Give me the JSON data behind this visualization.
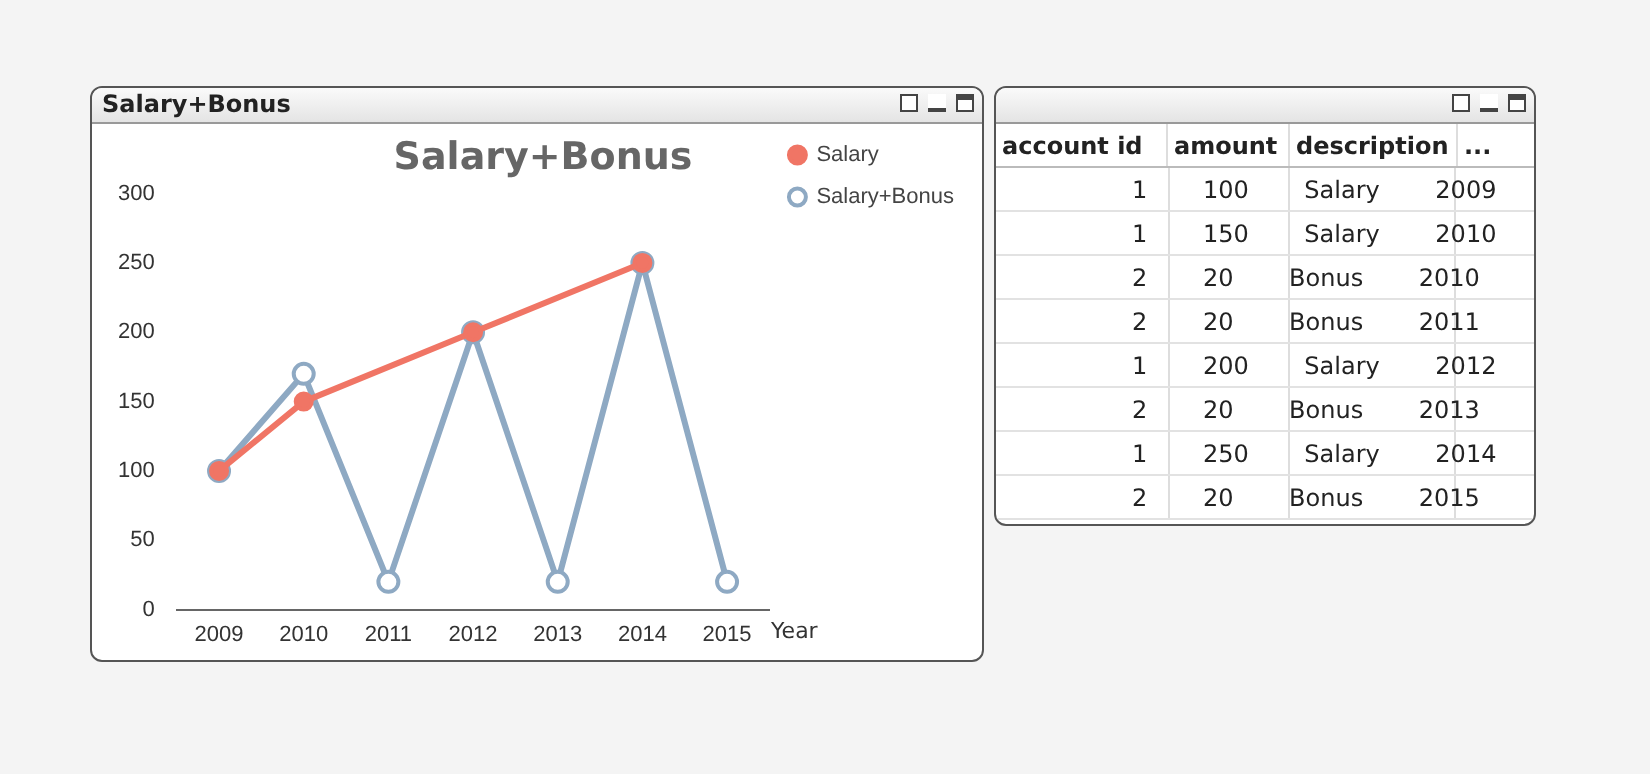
{
  "chart_data": [
    {
      "type": "line",
      "title": "Salary+Bonus",
      "xlabel": "Year",
      "categories": [
        "2009",
        "2010",
        "2011",
        "2012",
        "2013",
        "2014",
        "2015"
      ],
      "series": [
        {
          "name": "Salary+Bonus",
          "color": "#8ea9c3",
          "values": [
            100,
            170,
            20,
            200,
            20,
            250,
            20
          ]
        },
        {
          "name": "Salary",
          "color": "#f07565",
          "values": [
            100,
            150,
            null,
            200,
            null,
            250,
            null
          ]
        }
      ],
      "ylim": [
        0,
        300
      ],
      "yticks": [
        0,
        50,
        100,
        150,
        200,
        250,
        300
      ],
      "grid": false,
      "legend": "top right",
      "marker": "circle",
      "line_style": "solid",
      "annotations": [
        "Salary+Bonus"
      ]
    },
    {
      "type": "other",
      "categories": [
        "account id",
        "amount",
        "description",
        "..."
      ],
      "annotations": [
        "1 100 Salary 2009",
        "1 150 Salary 2010",
        "2 20 Bonus 2010",
        "2 20 Bonus 2011",
        "1 200 Salary 2012",
        "2 20 Bonus 2013",
        "1 250 Salary 2014",
        "2 20 Bonus 2015"
      ]
    }
  ]
}
